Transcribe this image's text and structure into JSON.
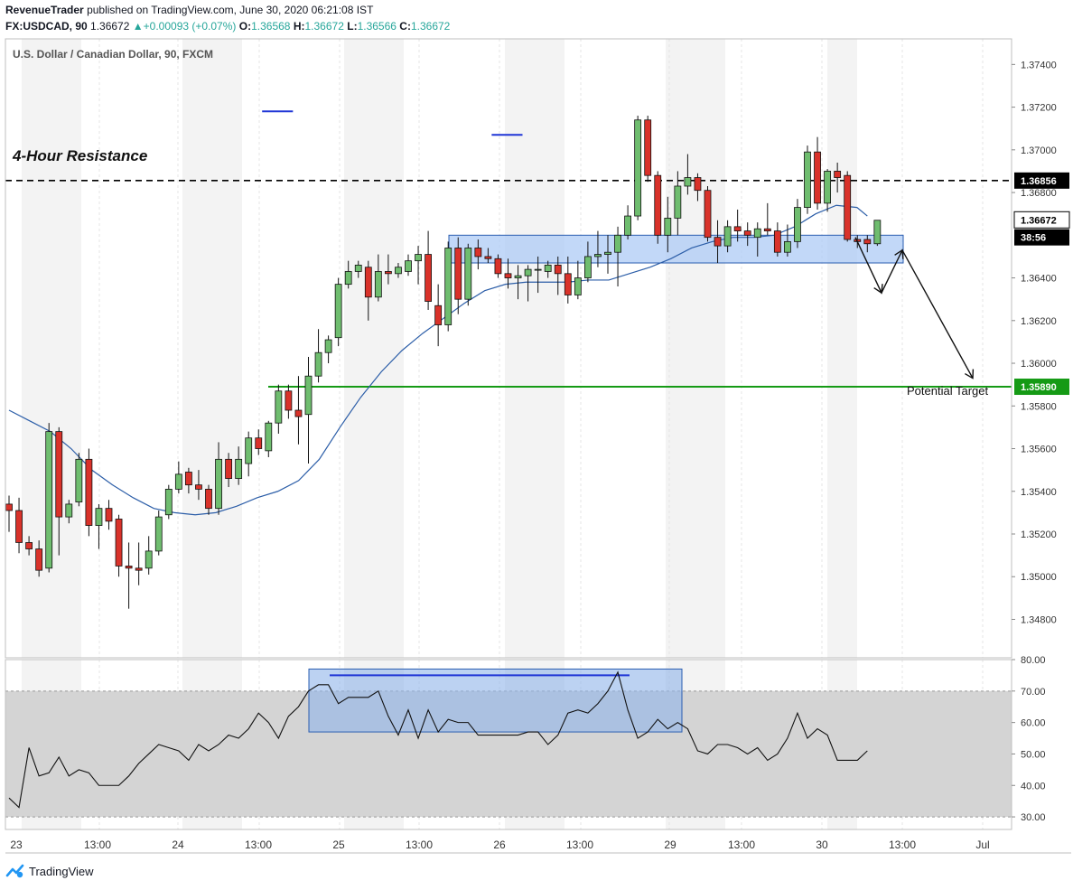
{
  "header": {
    "publisher": "RevenueTrader",
    "published_text": "published on TradingView.com, June 30, 2020 06:21:08 IST",
    "symbol": "FX:USDCAD, 90",
    "last": "1.36672",
    "change": "+0.00093 (+0.07%)",
    "o_label": "O:",
    "o": "1.36568",
    "h_label": "H:",
    "h": "1.36672",
    "l_label": "L:",
    "l": "1.36566",
    "c_label": "C:",
    "c": "1.36672"
  },
  "footer": {
    "brand": "TradingView"
  },
  "colors": {
    "up": "#6fbd6f",
    "down": "#d9322a",
    "ma": "#2c5ea8",
    "resistance": "#000000",
    "target": "#159a15",
    "zone": "#aecbf5",
    "zone_border": "#2a5db0",
    "rsi_band": "#d4d4d4",
    "session": "#f3f3f3"
  },
  "chart_data": [
    {
      "type": "candlestick",
      "title": "U.S. Dollar / Canadian Dollar, 90, FXCM",
      "ylim": [
        1.3462,
        1.3752
      ],
      "y_ticks": [
        "1.37400",
        "1.37200",
        "1.37000",
        "1.36800",
        "1.36400",
        "1.36200",
        "1.36000",
        "1.35800",
        "1.35600",
        "1.35400",
        "1.35200",
        "1.35000",
        "1.34800"
      ],
      "x_ticks": [
        "23",
        "13:00",
        "24",
        "13:00",
        "25",
        "13:00",
        "26",
        "13:00",
        "29",
        "13:00",
        "30",
        "13:00",
        "Jul"
      ],
      "price_tags": [
        {
          "label": "1.36856",
          "value": 1.36856,
          "style": "dark"
        },
        {
          "label": "1.36672",
          "value": 1.36672,
          "style": "light"
        },
        {
          "label": "38:56",
          "value": 1.3659,
          "style": "dark"
        },
        {
          "label": "1.35890",
          "value": 1.3589,
          "style": "green"
        }
      ],
      "resistance": {
        "label": "4-Hour Resistance",
        "value": 1.36856
      },
      "target": {
        "label": "Potential Target",
        "value": 1.3589
      },
      "zone": {
        "low": 1.3647,
        "high": 1.366
      },
      "tops": [
        {
          "value": 1.3718,
          "from": 24,
          "to": 27
        },
        {
          "value": 1.3707,
          "from": 47,
          "to": 50
        }
      ],
      "projection": [
        {
          "x": 53,
          "v": 1.3659
        },
        {
          "x": 55,
          "v": 1.3633
        },
        {
          "x": 57,
          "v": 1.3653
        },
        {
          "x": 61,
          "v": 1.3593
        }
      ],
      "candles": [
        [
          1.3534,
          1.3538,
          1.3521,
          1.3531
        ],
        [
          1.3531,
          1.3537,
          1.3511,
          1.3516
        ],
        [
          1.3516,
          1.3519,
          1.351,
          1.3513
        ],
        [
          1.3513,
          1.3517,
          1.35,
          1.3503
        ],
        [
          1.3504,
          1.3572,
          1.3502,
          1.3568
        ],
        [
          1.3568,
          1.357,
          1.351,
          1.3528
        ],
        [
          1.3528,
          1.3536,
          1.3525,
          1.3534
        ],
        [
          1.3535,
          1.3558,
          1.3533,
          1.3555
        ],
        [
          1.3555,
          1.356,
          1.3519,
          1.3524
        ],
        [
          1.3524,
          1.3534,
          1.3513,
          1.3532
        ],
        [
          1.3532,
          1.3536,
          1.3522,
          1.3526
        ],
        [
          1.3527,
          1.3529,
          1.35,
          1.3505
        ],
        [
          1.3505,
          1.3516,
          1.3485,
          1.3504
        ],
        [
          1.3504,
          1.3516,
          1.3496,
          1.3503
        ],
        [
          1.3504,
          1.3519,
          1.3501,
          1.3512
        ],
        [
          1.3512,
          1.3531,
          1.351,
          1.3528
        ],
        [
          1.3529,
          1.3543,
          1.3527,
          1.3541
        ],
        [
          1.3541,
          1.3554,
          1.3539,
          1.3548
        ],
        [
          1.3549,
          1.3551,
          1.3539,
          1.3543
        ],
        [
          1.3543,
          1.355,
          1.3536,
          1.3541
        ],
        [
          1.3541,
          1.3543,
          1.3529,
          1.3532
        ],
        [
          1.3532,
          1.3563,
          1.3529,
          1.3555
        ],
        [
          1.3555,
          1.3558,
          1.3542,
          1.3546
        ],
        [
          1.3546,
          1.3561,
          1.3543,
          1.3555
        ],
        [
          1.3553,
          1.3568,
          1.3547,
          1.3565
        ],
        [
          1.3565,
          1.3569,
          1.3557,
          1.356
        ],
        [
          1.3559,
          1.3573,
          1.3556,
          1.3572
        ],
        [
          1.3572,
          1.359,
          1.3567,
          1.3587
        ],
        [
          1.3587,
          1.359,
          1.3574,
          1.3578
        ],
        [
          1.3578,
          1.3594,
          1.3562,
          1.3575
        ],
        [
          1.3576,
          1.3603,
          1.3553,
          1.3594
        ],
        [
          1.3594,
          1.3616,
          1.3591,
          1.3605
        ],
        [
          1.3605,
          1.3613,
          1.36,
          1.3611
        ],
        [
          1.3612,
          1.364,
          1.3608,
          1.3637
        ],
        [
          1.3637,
          1.3648,
          1.3635,
          1.3643
        ],
        [
          1.3643,
          1.3648,
          1.364,
          1.3646
        ],
        [
          1.3645,
          1.3648,
          1.362,
          1.3631
        ],
        [
          1.3631,
          1.3651,
          1.3629,
          1.3643
        ],
        [
          1.3643,
          1.3651,
          1.3637,
          1.3642
        ],
        [
          1.3642,
          1.3647,
          1.364,
          1.3645
        ],
        [
          1.3643,
          1.3651,
          1.3641,
          1.3648
        ],
        [
          1.3648,
          1.3655,
          1.3637,
          1.3651
        ],
        [
          1.3651,
          1.3662,
          1.3625,
          1.3629
        ],
        [
          1.3627,
          1.3637,
          1.3608,
          1.3618
        ],
        [
          1.3618,
          1.3657,
          1.3615,
          1.3654
        ],
        [
          1.3654,
          1.3659,
          1.3623,
          1.363
        ],
        [
          1.363,
          1.3656,
          1.3627,
          1.3654
        ],
        [
          1.3654,
          1.3658,
          1.3644,
          1.365
        ],
        [
          1.365,
          1.3654,
          1.3647,
          1.3649
        ],
        [
          1.3649,
          1.3651,
          1.364,
          1.3642
        ],
        [
          1.3642,
          1.3649,
          1.3635,
          1.364
        ],
        [
          1.364,
          1.3646,
          1.363,
          1.3641
        ],
        [
          1.3641,
          1.3646,
          1.3629,
          1.3644
        ],
        [
          1.3644,
          1.365,
          1.3633,
          1.3644
        ],
        [
          1.3643,
          1.3648,
          1.364,
          1.3646
        ],
        [
          1.3646,
          1.365,
          1.3632,
          1.3642
        ],
        [
          1.3642,
          1.365,
          1.3628,
          1.3632
        ],
        [
          1.3632,
          1.3648,
          1.363,
          1.364
        ],
        [
          1.364,
          1.3657,
          1.3638,
          1.365
        ],
        [
          1.365,
          1.3662,
          1.3645,
          1.3651
        ]
      ],
      "candles_b": [
        [
          1.3651,
          1.366,
          1.3642,
          1.3652
        ],
        [
          1.3652,
          1.3664,
          1.3636,
          1.366
        ],
        [
          1.366,
          1.3674,
          1.3658,
          1.3669
        ],
        [
          1.3669,
          1.3716,
          1.3667,
          1.3714
        ],
        [
          1.3714,
          1.3716,
          1.3685,
          1.3688
        ],
        [
          1.3688,
          1.369,
          1.3656,
          1.366
        ],
        [
          1.366,
          1.3678,
          1.3652,
          1.3668
        ],
        [
          1.3668,
          1.369,
          1.366,
          1.3683
        ],
        [
          1.3683,
          1.3698,
          1.3679,
          1.3687
        ],
        [
          1.3687,
          1.3689,
          1.3676,
          1.3681
        ],
        [
          1.3681,
          1.3683,
          1.3657,
          1.3659
        ],
        [
          1.3659,
          1.3667,
          1.3647,
          1.3655
        ],
        [
          1.3655,
          1.3667,
          1.3652,
          1.3664
        ],
        [
          1.3664,
          1.3672,
          1.3657,
          1.3662
        ],
        [
          1.3662,
          1.3666,
          1.3655,
          1.366
        ],
        [
          1.3659,
          1.3666,
          1.365,
          1.3663
        ],
        [
          1.3663,
          1.3675,
          1.366,
          1.3662
        ],
        [
          1.3662,
          1.3666,
          1.365,
          1.3652
        ],
        [
          1.3652,
          1.3665,
          1.365,
          1.3657
        ],
        [
          1.3657,
          1.3677,
          1.3654,
          1.3673
        ],
        [
          1.3673,
          1.3702,
          1.367,
          1.3699
        ],
        [
          1.3699,
          1.3706,
          1.3672,
          1.3675
        ],
        [
          1.3675,
          1.3691,
          1.3671,
          1.369
        ],
        [
          1.369,
          1.3694,
          1.368,
          1.3687
        ],
        [
          1.3688,
          1.369,
          1.3657,
          1.3658
        ],
        [
          1.3658,
          1.366,
          1.3654,
          1.3657
        ],
        [
          1.3658,
          1.366,
          1.3652,
          1.3656
        ],
        [
          1.3656,
          1.3667,
          1.3655,
          1.3667
        ]
      ],
      "ma": [
        [
          0,
          1.3578
        ],
        [
          2,
          1.3573
        ],
        [
          4,
          1.3568
        ],
        [
          6,
          1.356
        ],
        [
          8,
          1.355
        ],
        [
          10,
          1.3543
        ],
        [
          12,
          1.3537
        ],
        [
          14,
          1.3532
        ],
        [
          16,
          1.353
        ],
        [
          18,
          1.3529
        ],
        [
          20,
          1.353
        ],
        [
          22,
          1.3533
        ],
        [
          24,
          1.3537
        ],
        [
          26,
          1.354
        ],
        [
          28,
          1.3545
        ],
        [
          30,
          1.3555
        ],
        [
          32,
          1.357
        ],
        [
          34,
          1.3584
        ],
        [
          36,
          1.3596
        ],
        [
          38,
          1.3606
        ],
        [
          40,
          1.3614
        ],
        [
          42,
          1.3621
        ],
        [
          44,
          1.3628
        ],
        [
          46,
          1.3634
        ],
        [
          48,
          1.3637
        ],
        [
          50,
          1.3638
        ],
        [
          52,
          1.3638
        ],
        [
          54,
          1.3638
        ],
        [
          56,
          1.3639
        ],
        [
          58,
          1.3639
        ],
        [
          60,
          1.3642
        ],
        [
          62,
          1.3645
        ],
        [
          64,
          1.3649
        ],
        [
          66,
          1.3654
        ],
        [
          68,
          1.3657
        ],
        [
          70,
          1.3659
        ],
        [
          72,
          1.3659
        ],
        [
          74,
          1.366
        ],
        [
          76,
          1.3664
        ],
        [
          78,
          1.367
        ],
        [
          80,
          1.3674
        ],
        [
          82,
          1.3673
        ],
        [
          83,
          1.3669
        ]
      ]
    },
    {
      "type": "line",
      "title": "",
      "ylim": [
        26,
        80
      ],
      "y_ticks": [
        "80.00",
        "70.00",
        "60.00",
        "50.00",
        "40.00",
        "30.00"
      ],
      "band": [
        30,
        70
      ],
      "zone": {
        "low": 57,
        "high": 77,
        "from": 38,
        "to": 84
      },
      "resistance_line": {
        "value": 75,
        "from": 40,
        "to": 77
      },
      "values": [
        36,
        33,
        52,
        43,
        44,
        49,
        43,
        45,
        44,
        40,
        40,
        40,
        43,
        47,
        50,
        53,
        52,
        51,
        48,
        53,
        51,
        53,
        56,
        55,
        58,
        63,
        60,
        55,
        62,
        65,
        70,
        72,
        72,
        66,
        68,
        68,
        68,
        70,
        62,
        56,
        64,
        55,
        64,
        57,
        61,
        60,
        60,
        56,
        56,
        56,
        56,
        56,
        57,
        57,
        53,
        56,
        63,
        64,
        63,
        66,
        70,
        76,
        64,
        55,
        57,
        61,
        58,
        60,
        58,
        51,
        50,
        53,
        53,
        52,
        50,
        52,
        48,
        50,
        55,
        63,
        55,
        58,
        56,
        48,
        48,
        48,
        51
      ]
    }
  ]
}
